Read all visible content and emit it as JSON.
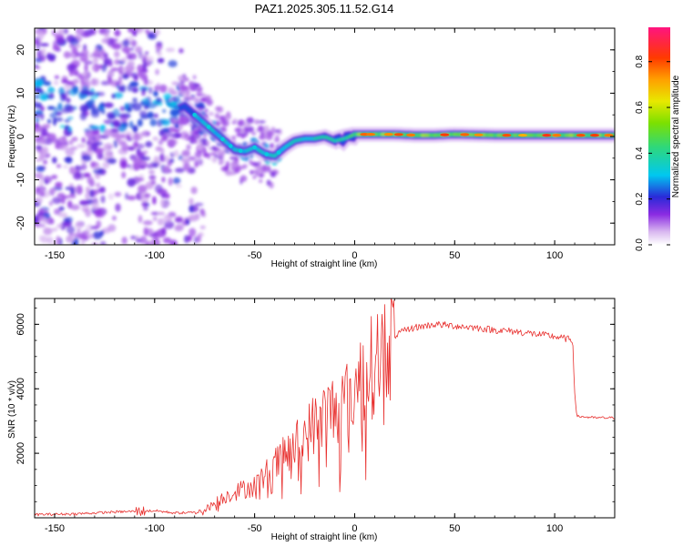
{
  "title": "PAZ1.2025.305.11.52.G14",
  "chart_data": [
    {
      "type": "heatmap",
      "name": "spectrogram",
      "xlabel": "Height of straight line (km)",
      "ylabel": "Frequency (Hz)",
      "xlim": [
        -160,
        130
      ],
      "ylim": [
        -25,
        25
      ],
      "xticks": [
        -150,
        -100,
        -50,
        0,
        50,
        100
      ],
      "yticks": [
        -20,
        -10,
        0,
        10,
        20
      ],
      "colorbar": {
        "label": "Normalized spectral amplitude",
        "range": [
          0.0,
          0.95
        ],
        "ticks": [
          0.0,
          0.2,
          0.4,
          0.6,
          0.8
        ],
        "tick_labels": [
          "0.0",
          "0.2",
          "0.4",
          "0.6",
          "0.8"
        ]
      },
      "ridge": {
        "x": [
          -160,
          -140,
          -120,
          -100,
          -90,
          -85,
          -80,
          -75,
          -70,
          -65,
          -60,
          -55,
          -50,
          -45,
          -40,
          -35,
          -30,
          -25,
          -20,
          -15,
          -10,
          -5,
          0,
          10,
          20,
          30,
          40,
          50,
          60,
          70,
          80,
          90,
          100,
          110,
          120,
          130
        ],
        "y": [
          8,
          6,
          7,
          6,
          6,
          7,
          5,
          3,
          1,
          -1,
          -3,
          -3.5,
          -2.5,
          -4,
          -4.5,
          -2.5,
          -1,
          -0.5,
          -0.5,
          0,
          -1,
          -0.5,
          0.5,
          0.5,
          0.5,
          0.3,
          0.3,
          0.5,
          0.4,
          0.3,
          0.3,
          0.3,
          0.3,
          0.3,
          0.3,
          0.3
        ]
      }
    },
    {
      "type": "line",
      "name": "snr",
      "xlabel": "Height of straight line (km)",
      "ylabel": "SNR (10 * v/v)",
      "xlim": [
        -160,
        130
      ],
      "ylim": [
        0,
        6800
      ],
      "xticks": [
        -150,
        -100,
        -50,
        0,
        50,
        100
      ],
      "yticks": [
        2000,
        4000,
        6000
      ],
      "color": "#e8302e",
      "series": [
        {
          "name": "SNR envelope",
          "x": [
            -160,
            -140,
            -120,
            -100,
            -90,
            -80,
            -75,
            -70,
            -65,
            -60,
            -55,
            -50,
            -45,
            -40,
            -35,
            -30,
            -25,
            -20,
            -15,
            -10,
            -5,
            0,
            5,
            10,
            15,
            20,
            25,
            30,
            35,
            40,
            50,
            60,
            70,
            80,
            90,
            100,
            105,
            109,
            110,
            111,
            120,
            130
          ],
          "y": [
            100,
            120,
            180,
            220,
            150,
            160,
            250,
            450,
            650,
            800,
            900,
            1000,
            1300,
            1600,
            1900,
            2200,
            2550,
            2900,
            3200,
            3400,
            3600,
            4000,
            4400,
            4800,
            5300,
            5650,
            5800,
            5900,
            5950,
            6000,
            5950,
            5900,
            5820,
            5780,
            5700,
            5620,
            5560,
            5500,
            3900,
            3150,
            3100,
            3100
          ]
        }
      ]
    }
  ]
}
